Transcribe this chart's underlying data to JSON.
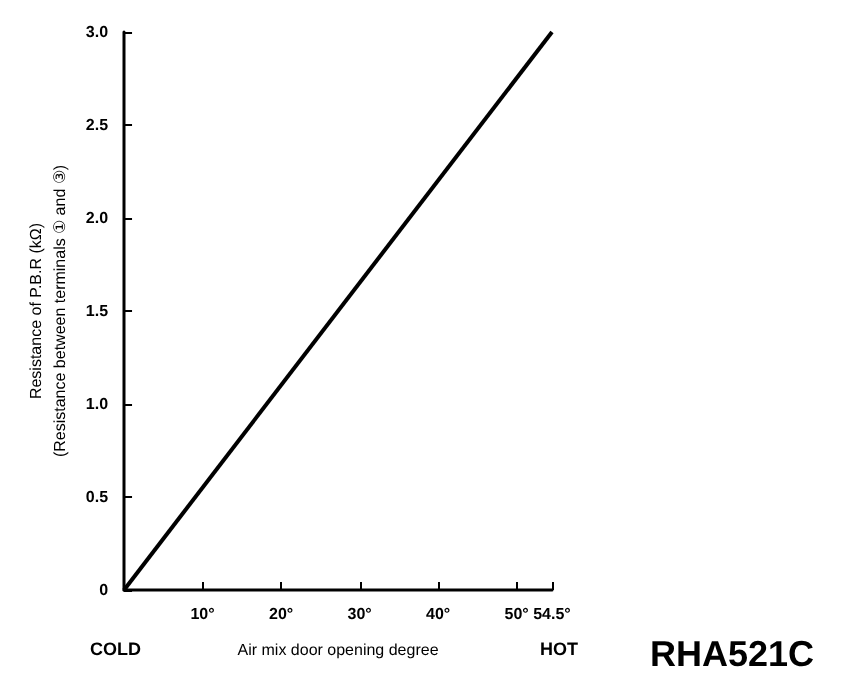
{
  "chart_data": {
    "type": "line",
    "xlabel": "Air mix door opening degree",
    "ylabel": "Resistance of P.B.R (kΩ)\n(Resistance between terminals ① and ③)",
    "x": [
      0,
      54.5
    ],
    "series": [
      {
        "color": "#000000",
        "values": [
          0,
          3.0
        ]
      }
    ],
    "xlim": [
      0,
      54.5
    ],
    "xticks": [
      {
        "value": 10,
        "label": "10°"
      },
      {
        "value": 20,
        "label": "20°"
      },
      {
        "value": 30,
        "label": "30°"
      },
      {
        "value": 40,
        "label": "40°"
      },
      {
        "value": 50,
        "label": "50°"
      },
      {
        "value": 54.5,
        "label": "54.5°"
      }
    ],
    "ylim": [
      0,
      3
    ],
    "yticks": [
      0,
      {
        "value": 0.5,
        "label": "0.5"
      },
      {
        "value": 1,
        "label": "1.0"
      },
      {
        "value": 1.5,
        "label": "1.5"
      },
      {
        "value": 2,
        "label": "2.0"
      },
      {
        "value": 2.5,
        "label": "2.5"
      },
      {
        "value": 3,
        "label": "3.0"
      }
    ],
    "marker": "none",
    "line_style": "solid",
    "annotations": [
      "COLD",
      "HOT",
      "RHA521C"
    ]
  }
}
